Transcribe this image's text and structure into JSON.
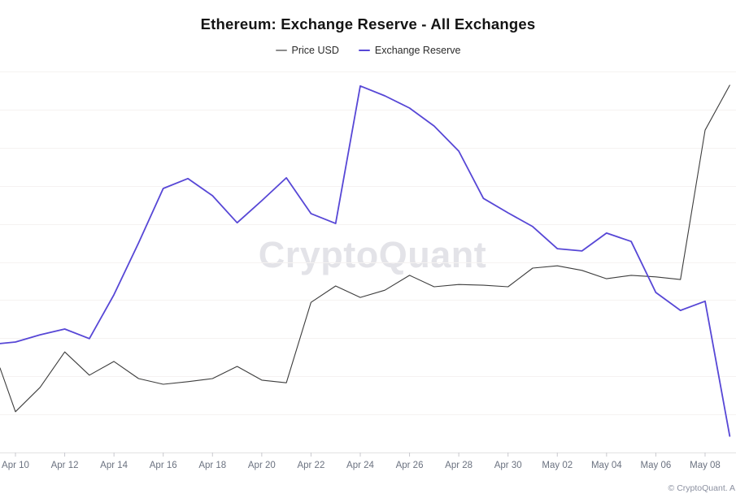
{
  "title": "Ethereum: Exchange Reserve - All Exchanges",
  "watermark": "CryptoQuant",
  "attribution": "© CryptoQuant. A",
  "legend": {
    "items": [
      {
        "label": "Price USD",
        "dash_color": "#8c8c8c"
      },
      {
        "label": "Exchange Reserve",
        "dash_color": "#5747d6"
      }
    ]
  },
  "colors": {
    "background": "#ffffff",
    "grid_line": "#f5f2f1",
    "axis_line": "#e2e2e2",
    "tick_mark": "#c9c9ce",
    "axis_label": "#6b7280",
    "price_line": "#3d3d3d",
    "reserve_line": "#5747d6",
    "watermark": "#e3e3e8"
  },
  "chart_data": {
    "type": "line",
    "title": "Ethereum: Exchange Reserve - All Exchanges",
    "xlabel": "",
    "ylabel": "",
    "grid": "horizontal, 11 faint lines",
    "legend_position": "top-center",
    "y_axis_note": "no y-axis tick labels are shown; series values below are expressed as percent of plot height (0 = plot bottom, 100 = plot top)",
    "x_note": "one point per day; first point is clipped at the left edge of the plot",
    "x_tick_labels": [
      "Apr 10",
      "Apr 12",
      "Apr 14",
      "Apr 16",
      "Apr 18",
      "Apr 20",
      "Apr 22",
      "Apr 24",
      "Apr 26",
      "Apr 28",
      "Apr 30",
      "May 02",
      "May 04",
      "May 06",
      "May 08"
    ],
    "dates": [
      "Apr 09 (edge)",
      "Apr 10",
      "Apr 11",
      "Apr 12",
      "Apr 13",
      "Apr 14",
      "Apr 15",
      "Apr 16",
      "Apr 17",
      "Apr 18",
      "Apr 19",
      "Apr 20",
      "Apr 21",
      "Apr 22",
      "Apr 23",
      "Apr 24",
      "Apr 25",
      "Apr 26",
      "Apr 27",
      "Apr 28",
      "Apr 29",
      "Apr 30",
      "May 01",
      "May 02",
      "May 03",
      "May 04",
      "May 05",
      "May 06",
      "May 07",
      "May 08",
      "May 09"
    ],
    "series": [
      {
        "name": "Price USD",
        "color": "#3d3d3d",
        "stroke_width": 1.1,
        "values": [
          22.2,
          10.7,
          17.1,
          26.4,
          20.3,
          23.9,
          19.4,
          17.9,
          18.6,
          19.4,
          22.6,
          19.0,
          18.3,
          39.4,
          43.7,
          40.7,
          42.6,
          46.5,
          43.5,
          44.1,
          43.9,
          43.5,
          48.4,
          49.0,
          47.8,
          45.6,
          46.5,
          46.1,
          45.4,
          84.6,
          96.4
        ]
      },
      {
        "name": "Exchange Reserve",
        "color": "#5747d6",
        "stroke_width": 1.8,
        "values": [
          28.6,
          29.0,
          30.9,
          32.4,
          29.9,
          41.4,
          55.0,
          69.3,
          71.9,
          67.4,
          60.3,
          66.1,
          72.1,
          62.7,
          60.1,
          96.2,
          93.6,
          90.4,
          85.7,
          79.1,
          66.7,
          62.9,
          59.3,
          53.5,
          52.9,
          57.6,
          55.4,
          42.0,
          37.3,
          39.7,
          4.3
        ]
      }
    ]
  }
}
